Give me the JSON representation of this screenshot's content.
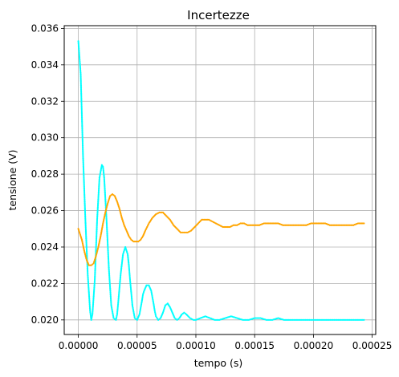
{
  "chart_data": {
    "type": "scatter",
    "title": "Incertezze",
    "xlabel": "tempo (s)",
    "ylabel": "tensione (V)",
    "xlim": [
      -1.2e-05,
      0.000253
    ],
    "ylim": [
      0.0192,
      0.03615
    ],
    "grid": true,
    "x_ticks": [
      0.0,
      5e-05,
      0.0001,
      0.00015,
      0.0002,
      0.00025
    ],
    "x_tick_labels": [
      "0.00000",
      "0.00005",
      "0.00010",
      "0.00015",
      "0.00020",
      "0.00025"
    ],
    "y_ticks": [
      0.02,
      0.022,
      0.024,
      0.026,
      0.028,
      0.03,
      0.032,
      0.034,
      0.036
    ],
    "y_tick_labels": [
      "0.020",
      "0.022",
      "0.024",
      "0.026",
      "0.028",
      "0.030",
      "0.032",
      "0.034",
      "0.036"
    ],
    "series": [
      {
        "color": "#00ffff",
        "x": [
          0.0,
          2e-06,
          4e-06,
          6e-06,
          8e-06,
          1e-05,
          1.1e-05,
          1.2e-05,
          1.4e-05,
          1.6e-05,
          1.8e-05,
          2e-05,
          2.1e-05,
          2.2e-05,
          2.4e-05,
          2.6e-05,
          2.8e-05,
          3e-05,
          3.2e-05,
          3.3e-05,
          3.4e-05,
          3.6e-05,
          3.8e-05,
          4e-05,
          4.2e-05,
          4.3e-05,
          4.4e-05,
          4.6e-05,
          4.8e-05,
          5e-05,
          5.2e-05,
          5.4e-05,
          5.5e-05,
          5.6e-05,
          5.8e-05,
          6e-05,
          6.2e-05,
          6.4e-05,
          6.5e-05,
          6.6e-05,
          6.8e-05,
          7e-05,
          7.2e-05,
          7.4e-05,
          7.6e-05,
          7.7e-05,
          7.8e-05,
          8e-05,
          8.2e-05,
          8.4e-05,
          8.6e-05,
          8.7e-05,
          8.8e-05,
          9e-05,
          9.2e-05,
          9.5e-05,
          9.8e-05,
          0.0001,
          0.000104,
          0.000108,
          0.000112,
          0.000116,
          0.00012,
          0.000125,
          0.00013,
          0.000135,
          0.00014,
          0.000145,
          0.00015,
          0.000155,
          0.00016,
          0.000165,
          0.00017,
          0.000175,
          0.00018,
          0.0002,
          0.00022,
          0.000243
        ],
        "y": [
          0.0353,
          0.0335,
          0.029,
          0.0255,
          0.0225,
          0.0205,
          0.02,
          0.0203,
          0.0222,
          0.0255,
          0.0278,
          0.0285,
          0.0284,
          0.0278,
          0.0255,
          0.0228,
          0.0208,
          0.0201,
          0.02,
          0.0203,
          0.021,
          0.0225,
          0.0236,
          0.024,
          0.0236,
          0.023,
          0.0222,
          0.0208,
          0.0201,
          0.02,
          0.0203,
          0.021,
          0.0214,
          0.0216,
          0.0219,
          0.0219,
          0.0216,
          0.0209,
          0.0205,
          0.0202,
          0.02,
          0.0201,
          0.0204,
          0.0208,
          0.0209,
          0.0208,
          0.0207,
          0.0204,
          0.0201,
          0.02,
          0.0201,
          0.0202,
          0.0203,
          0.0204,
          0.0203,
          0.0201,
          0.02,
          0.02,
          0.0201,
          0.0202,
          0.0201,
          0.02,
          0.02,
          0.0201,
          0.0202,
          0.0201,
          0.02,
          0.02,
          0.0201,
          0.0201,
          0.02,
          0.02,
          0.0201,
          0.02,
          0.02,
          0.02,
          0.02,
          0.02
        ]
      },
      {
        "color": "#ffa500",
        "x": [
          0.0,
          3e-06,
          5e-06,
          7e-06,
          9e-06,
          1.1e-05,
          1.3e-05,
          1.5e-05,
          1.7e-05,
          1.9e-05,
          2.1e-05,
          2.3e-05,
          2.5e-05,
          2.7e-05,
          2.9e-05,
          3.1e-05,
          3.3e-05,
          3.5e-05,
          3.7e-05,
          3.9e-05,
          4.1e-05,
          4.3e-05,
          4.5e-05,
          4.7e-05,
          4.9e-05,
          5.1e-05,
          5.3e-05,
          5.5e-05,
          5.7e-05,
          6e-05,
          6.3e-05,
          6.6e-05,
          6.9e-05,
          7.2e-05,
          7.5e-05,
          7.8e-05,
          8.1e-05,
          8.4e-05,
          8.7e-05,
          9e-05,
          9.3e-05,
          9.6e-05,
          9.9e-05,
          0.000102,
          0.000105,
          0.000108,
          0.000111,
          0.000114,
          0.000117,
          0.00012,
          0.000123,
          0.000126,
          0.000129,
          0.000132,
          0.000135,
          0.000138,
          0.000141,
          0.000144,
          0.000147,
          0.00015,
          0.000154,
          0.000158,
          0.000162,
          0.000166,
          0.00017,
          0.000174,
          0.000178,
          0.000182,
          0.000186,
          0.00019,
          0.000194,
          0.000198,
          0.000202,
          0.000206,
          0.00021,
          0.000214,
          0.000218,
          0.000222,
          0.000226,
          0.00023,
          0.000234,
          0.000238,
          0.000243
        ],
        "y": [
          0.025,
          0.0244,
          0.0238,
          0.0233,
          0.023,
          0.023,
          0.0231,
          0.0235,
          0.024,
          0.0246,
          0.0253,
          0.0259,
          0.0264,
          0.0268,
          0.0269,
          0.0268,
          0.0265,
          0.0261,
          0.0256,
          0.0252,
          0.0249,
          0.0246,
          0.0244,
          0.0243,
          0.0243,
          0.0243,
          0.0244,
          0.0246,
          0.0249,
          0.0253,
          0.0256,
          0.0258,
          0.0259,
          0.0259,
          0.0257,
          0.0255,
          0.0252,
          0.025,
          0.0248,
          0.0248,
          0.0248,
          0.0249,
          0.0251,
          0.0253,
          0.0255,
          0.0255,
          0.0255,
          0.0254,
          0.0253,
          0.0252,
          0.0251,
          0.0251,
          0.0251,
          0.0252,
          0.0252,
          0.0253,
          0.0253,
          0.0252,
          0.0252,
          0.0252,
          0.0252,
          0.0253,
          0.0253,
          0.0253,
          0.0253,
          0.0252,
          0.0252,
          0.0252,
          0.0252,
          0.0252,
          0.0252,
          0.0253,
          0.0253,
          0.0253,
          0.0253,
          0.0252,
          0.0252,
          0.0252,
          0.0252,
          0.0252,
          0.0252,
          0.0253,
          0.0253
        ]
      }
    ]
  }
}
